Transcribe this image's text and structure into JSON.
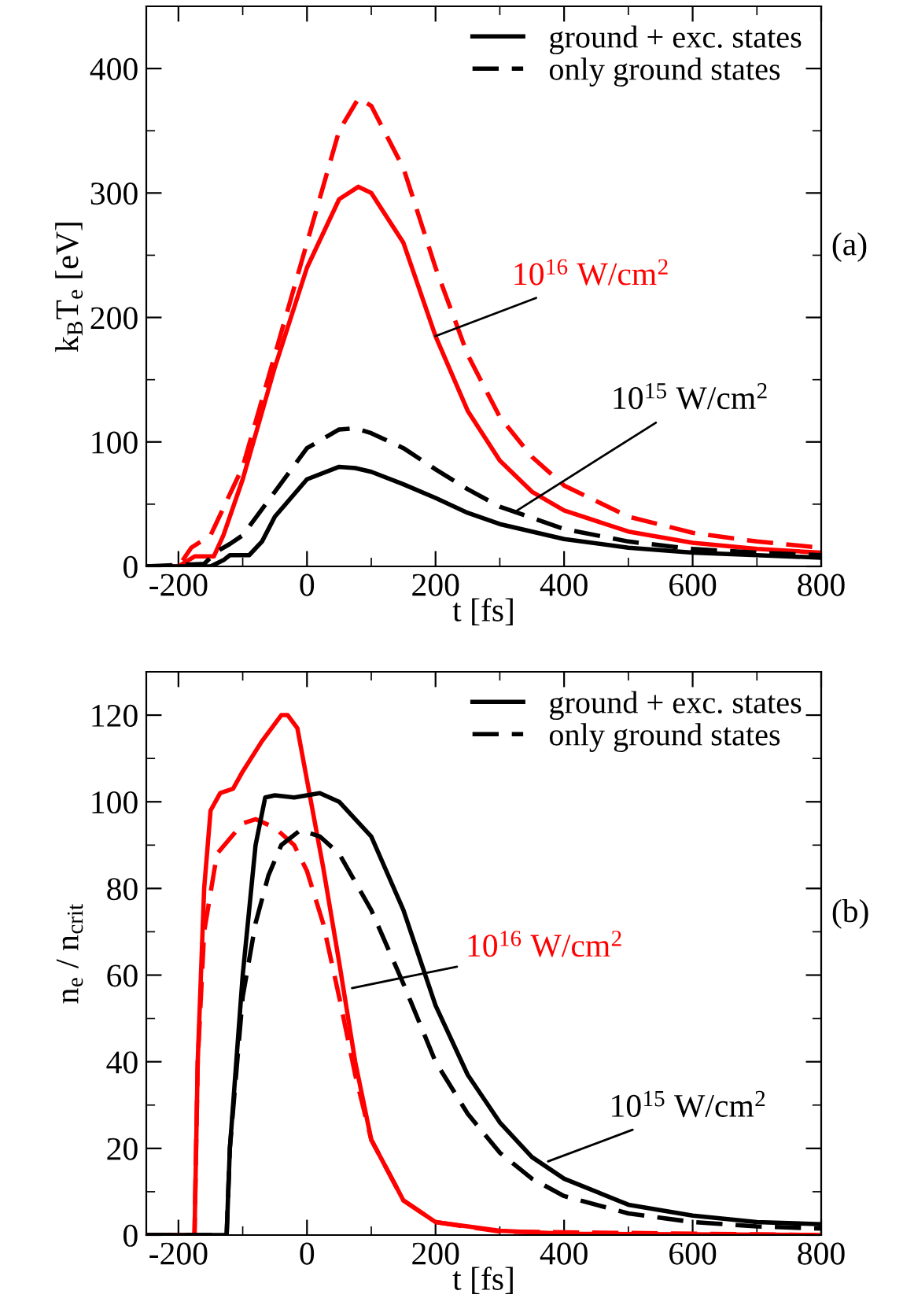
{
  "chart_data": [
    {
      "type": "line",
      "xlabel": "t [fs]",
      "ylabel": "k$_{B}$T$_{e}$ [eV]",
      "xlim": [
        -250,
        800
      ],
      "ylim": [
        0,
        450
      ],
      "xticks": [
        -200,
        0,
        200,
        400,
        600,
        800
      ],
      "yticks": [
        0,
        100,
        200,
        300,
        400
      ],
      "legend": "top right",
      "grid": false,
      "marker": "none",
      "series": [
        {
          "color": "#ff0000",
          "line_style": "dashed",
          "x": [
            -250,
            -200,
            -180,
            -150,
            -100,
            -50,
            0,
            50,
            80,
            100,
            150,
            200,
            250,
            300,
            350,
            400,
            500,
            600,
            700,
            800
          ],
          "values": [
            0,
            0,
            15,
            25,
            80,
            170,
            260,
            350,
            376,
            370,
            320,
            240,
            170,
            120,
            88,
            65,
            40,
            27,
            20,
            15
          ]
        },
        {
          "color": "#ff0000",
          "line_style": "solid",
          "x": [
            -250,
            -200,
            -175,
            -145,
            -130,
            -100,
            -50,
            0,
            50,
            80,
            100,
            150,
            200,
            250,
            300,
            350,
            400,
            500,
            600,
            700,
            800
          ],
          "values": [
            0,
            0,
            8,
            8,
            25,
            70,
            160,
            240,
            295,
            305,
            300,
            260,
            185,
            125,
            85,
            60,
            45,
            28,
            19,
            14,
            11
          ]
        },
        {
          "name": "ground + exc. states",
          "color": "#000000",
          "line_style": "solid",
          "x": [
            -250,
            -150,
            -130,
            -120,
            -90,
            -70,
            -50,
            0,
            50,
            75,
            100,
            150,
            200,
            250,
            300,
            400,
            500,
            600,
            700,
            800
          ],
          "values": [
            0,
            0,
            5,
            9,
            9,
            20,
            40,
            70,
            80,
            79,
            76,
            66,
            55,
            43,
            34,
            22,
            15,
            11,
            9,
            7
          ]
        },
        {
          "name": "only ground states",
          "color": "#000000",
          "line_style": "dashed",
          "x": [
            -250,
            -160,
            -140,
            -120,
            -100,
            -50,
            0,
            50,
            75,
            100,
            150,
            200,
            250,
            300,
            400,
            500,
            600,
            700,
            800
          ],
          "values": [
            0,
            2,
            12,
            18,
            25,
            60,
            95,
            110,
            111,
            107,
            95,
            78,
            62,
            48,
            30,
            20,
            14,
            11,
            9
          ]
        }
      ],
      "annotations": [
        {
          "text": "10$^{16}$ W/cm$^{2}$",
          "x": 200,
          "y": 185
        },
        {
          "text": "10$^{15}$ W/cm$^{2}$",
          "x": 327,
          "y": 45
        },
        "(a)"
      ]
    },
    {
      "type": "line",
      "xlabel": "t [fs]",
      "ylabel": "n$_{e}$ / n$_{crit}$",
      "xlim": [
        -250,
        800
      ],
      "ylim": [
        0,
        130
      ],
      "xticks": [
        -200,
        0,
        200,
        400,
        600,
        800
      ],
      "yticks": [
        0,
        20,
        40,
        60,
        80,
        100,
        120
      ],
      "legend": "top right",
      "grid": false,
      "marker": "none",
      "series": [
        {
          "color": "#ff0000",
          "line_style": "solid",
          "x": [
            -250,
            -175,
            -170,
            -160,
            -150,
            -135,
            -115,
            -100,
            -70,
            -40,
            -30,
            -15,
            0,
            25,
            50,
            75,
            100,
            150,
            200,
            300,
            400,
            800
          ],
          "values": [
            0,
            0,
            40,
            80,
            98,
            102,
            103,
            107,
            114,
            120,
            120,
            117,
            105,
            85,
            63,
            40,
            22,
            8,
            3,
            1,
            0.3,
            0
          ]
        },
        {
          "color": "#ff0000",
          "line_style": "dashed",
          "x": [
            -250,
            -175,
            -170,
            -160,
            -140,
            -100,
            -80,
            -50,
            -20,
            0,
            25,
            50,
            75,
            100,
            150,
            200,
            300,
            800
          ],
          "values": [
            0,
            0,
            40,
            70,
            88,
            95,
            96,
            94,
            90,
            84,
            72,
            55,
            37,
            22,
            8,
            3,
            0.8,
            0
          ]
        },
        {
          "name": "ground + exc. states",
          "color": "#000000",
          "line_style": "solid",
          "x": [
            -250,
            -125,
            -120,
            -100,
            -80,
            -65,
            -50,
            -20,
            20,
            50,
            100,
            150,
            200,
            250,
            300,
            350,
            400,
            500,
            600,
            700,
            800
          ],
          "values": [
            0,
            0,
            20,
            60,
            90,
            101,
            101.5,
            101,
            102,
            100,
            92,
            75,
            53,
            37,
            26,
            18,
            13,
            7,
            4.5,
            3,
            2.5
          ]
        },
        {
          "name": "only ground states",
          "color": "#000000",
          "line_style": "dashed",
          "x": [
            -250,
            -125,
            -120,
            -100,
            -80,
            -60,
            -40,
            -10,
            20,
            50,
            100,
            150,
            200,
            250,
            300,
            350,
            400,
            500,
            600,
            700,
            800
          ],
          "values": [
            0,
            0,
            20,
            55,
            72,
            83,
            90,
            93.5,
            92,
            88,
            75,
            58,
            40,
            28,
            19,
            13,
            9,
            5,
            3,
            2,
            1.5
          ]
        }
      ],
      "annotations": [
        {
          "text": "10$^{16}$ W/cm$^{2}$",
          "x": 70,
          "y": 57
        },
        {
          "text": "10$^{15}$ W/cm$^{2}$",
          "x": 375,
          "y": 17
        },
        "(b)"
      ]
    }
  ]
}
